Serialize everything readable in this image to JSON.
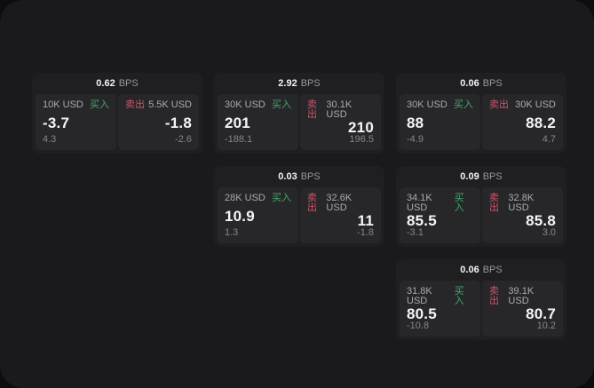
{
  "shared": {
    "bps_unit": "BPS",
    "buy_label": "买入",
    "sell_label": "卖出"
  },
  "colors": {
    "buy_accent": "#41a867",
    "sell_accent": "#d05368",
    "panel_bg": "#1a1a1c",
    "card_bg": "#1f1f22",
    "tile_bg": "#27272a"
  },
  "cards": [
    {
      "bps": "0.62",
      "buy": {
        "amount": "10K USD",
        "price": "-3.7",
        "delta": "4.3"
      },
      "sell": {
        "amount": "5.5K USD",
        "price": "-1.8",
        "delta": "-2.6"
      }
    },
    {
      "bps": "2.92",
      "buy": {
        "amount": "30K USD",
        "price": "201",
        "delta": "-188.1"
      },
      "sell": {
        "amount": "30.1K USD",
        "price": "210",
        "delta": "196.5"
      }
    },
    {
      "bps": "0.06",
      "buy": {
        "amount": "30K USD",
        "price": "88",
        "delta": "-4.9"
      },
      "sell": {
        "amount": "30K USD",
        "price": "88.2",
        "delta": "4.7"
      }
    },
    {
      "bps": "0.03",
      "buy": {
        "amount": "28K USD",
        "price": "10.9",
        "delta": "1.3"
      },
      "sell": {
        "amount": "32.6K USD",
        "price": "11",
        "delta": "-1.8"
      }
    },
    {
      "bps": "0.09",
      "buy": {
        "amount": "34.1K USD",
        "price": "85.5",
        "delta": "-3.1"
      },
      "sell": {
        "amount": "32.8K USD",
        "price": "85.8",
        "delta": "3.0"
      }
    },
    {
      "bps": "0.06",
      "buy": {
        "amount": "31.8K USD",
        "price": "80.5",
        "delta": "-10.8"
      },
      "sell": {
        "amount": "39.1K USD",
        "price": "80.7",
        "delta": "10.2"
      }
    }
  ]
}
